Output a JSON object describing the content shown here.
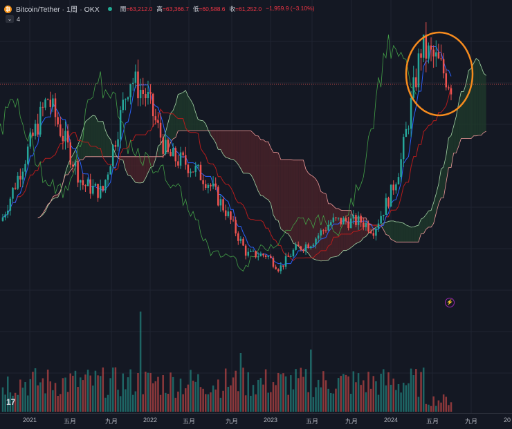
{
  "header": {
    "symbol": "Bitcoin/Tether · 1周 · OKX",
    "open_label": "開",
    "open_value": "=63,212.0",
    "high_label": "高",
    "high_value": "=63,366.7",
    "low_label": "低",
    "low_value": "=60,588.6",
    "close_label": "收",
    "close_value": "=61,252.0",
    "change": "−1,959.9 (−3.10%)"
  },
  "indicator_count": "4",
  "tv_logo": "17",
  "flash_icon": "⚡",
  "colors": {
    "background": "#141823",
    "up": "#26a69a",
    "down": "#ef5350",
    "tenkan": "#2962ff",
    "kijun": "#b71c1c",
    "lagging": "#43a047",
    "cloud_bull": "#1e3a2b",
    "cloud_bear": "#4a2329",
    "circle": "#f68b1e"
  },
  "chart_data": {
    "type": "candlestick",
    "timeframe": "1W",
    "x_ticks": [
      "2021",
      "五月",
      "九月",
      "2022",
      "五月",
      "九月",
      "2023",
      "五月",
      "九月",
      "2024",
      "五月",
      "九月",
      "20"
    ],
    "series": [
      {
        "name": "price",
        "style": "candles"
      },
      {
        "name": "tenkan",
        "style": "line"
      },
      {
        "name": "kijun",
        "style": "line"
      },
      {
        "name": "lagging",
        "style": "line"
      },
      {
        "name": "cloud",
        "style": "area"
      },
      {
        "name": "volume",
        "style": "histogram"
      }
    ],
    "anchors_t": [
      0,
      0.09,
      0.16,
      0.2,
      0.255,
      0.29,
      0.33,
      0.37,
      0.41,
      0.45,
      0.49,
      0.53,
      0.555,
      0.585,
      0.62,
      0.66,
      0.72,
      0.745,
      0.78,
      0.8,
      0.84,
      0.87,
      0.9
    ],
    "anchors_close": [
      29000,
      58000,
      37000,
      35000,
      63000,
      58000,
      44000,
      42000,
      38000,
      30000,
      20000,
      19800,
      16500,
      21000,
      23000,
      28000,
      28000,
      26000,
      35000,
      43000,
      70000,
      67000,
      61252
    ],
    "ylim": [
      15000,
      75000
    ],
    "annotation": "circle around recent peak",
    "last_price": 61252.0
  }
}
